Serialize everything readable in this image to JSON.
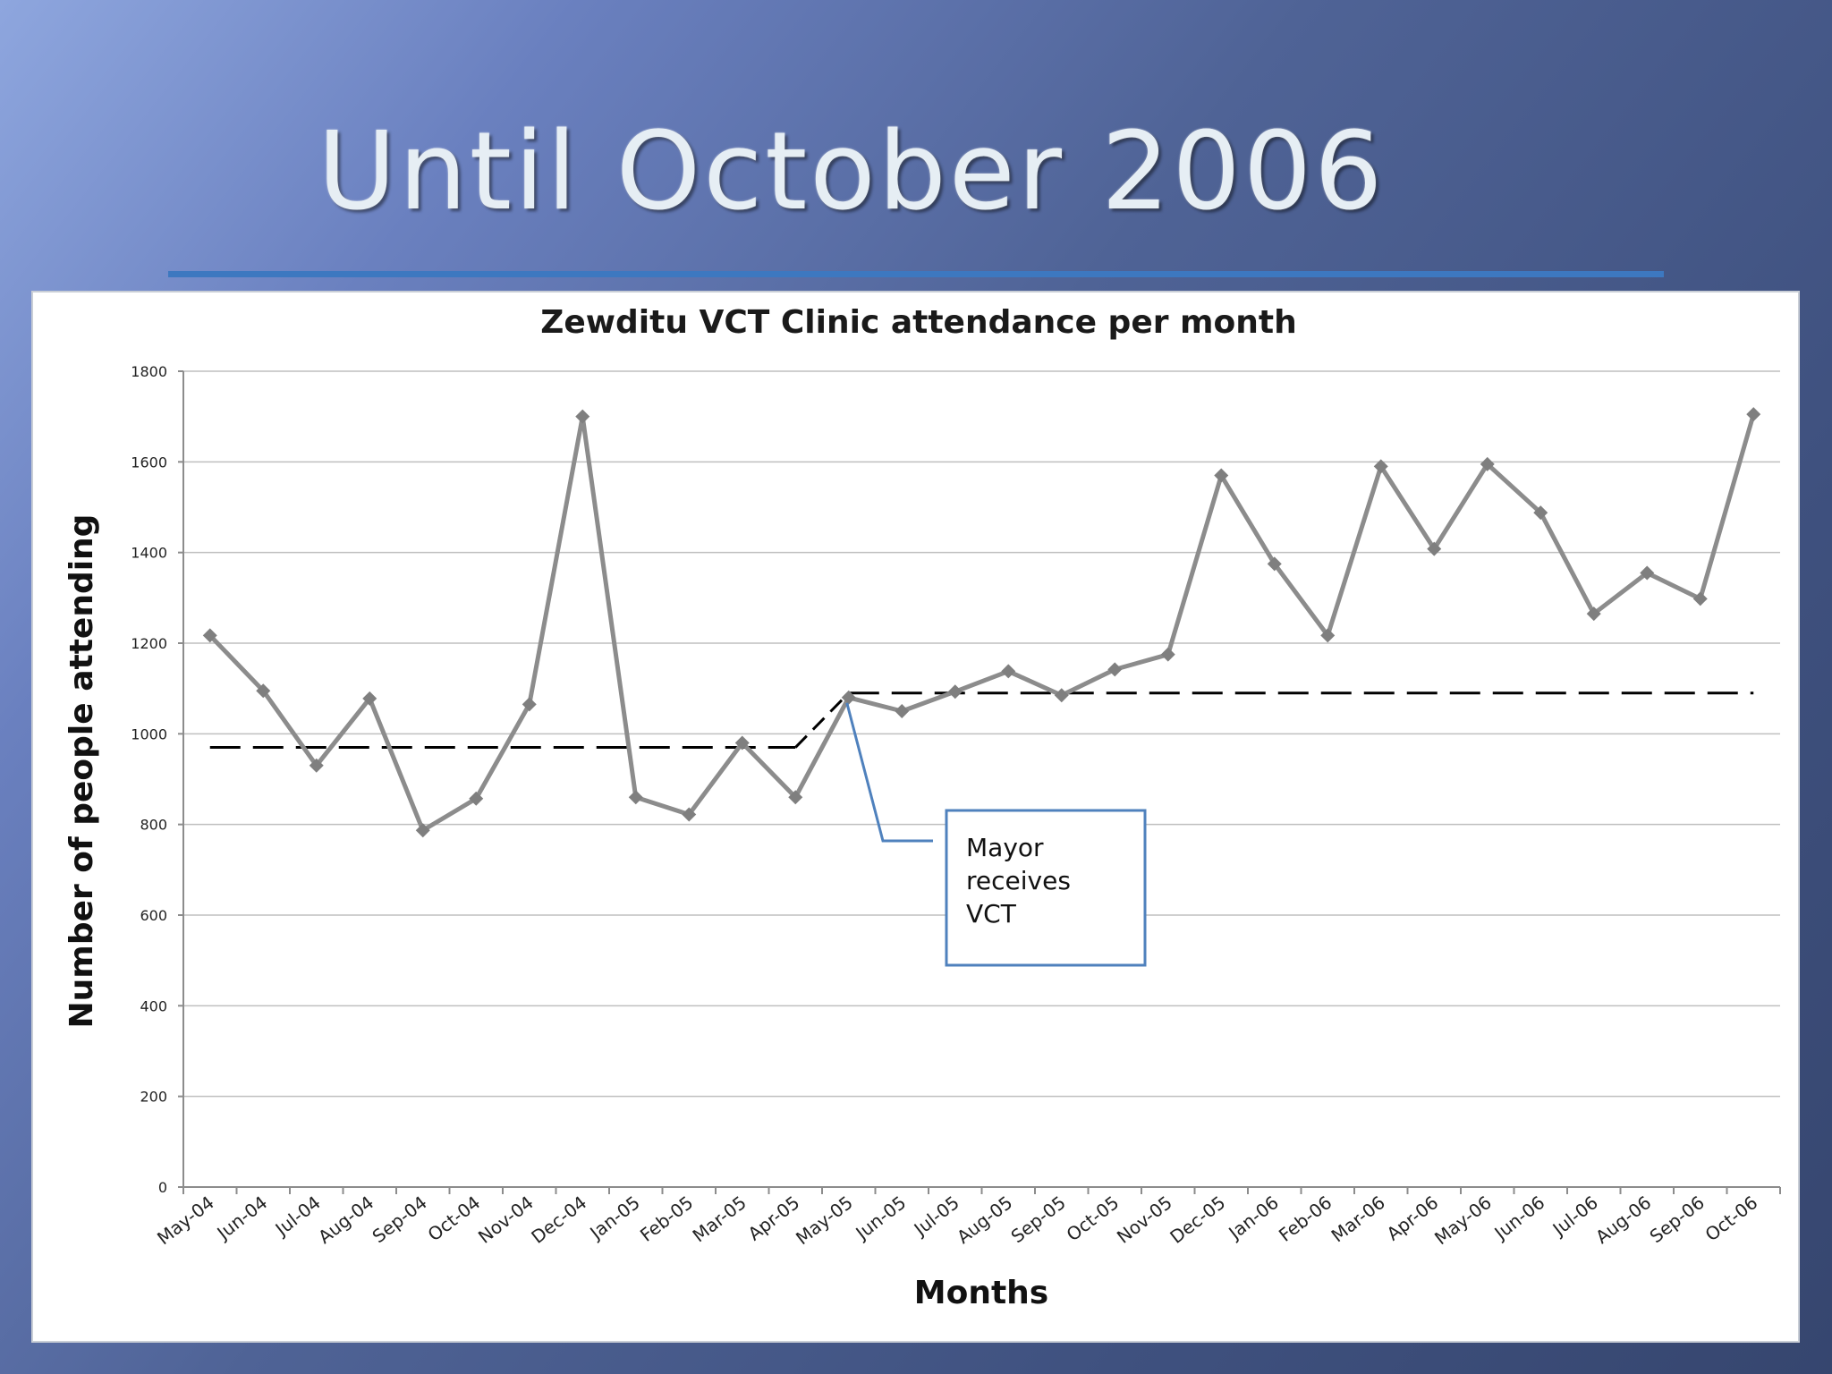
{
  "slide": {
    "title": "Until October 2006"
  },
  "colors": {
    "series": "#8c8c8c",
    "marker": "#7f7f7f",
    "baseline": "#000000",
    "grid": "#bfbfbf",
    "callout": "#4f81bd"
  },
  "chart_data": {
    "type": "line",
    "title": "Zewditu VCT Clinic attendance per month",
    "xlabel": "Months",
    "ylabel": "Number of people attending",
    "ylim": [
      0,
      1800
    ],
    "yticks": [
      0,
      200,
      400,
      600,
      800,
      1000,
      1200,
      1400,
      1600,
      1800
    ],
    "grid": true,
    "legend": "none",
    "categories": [
      "May-04",
      "Jun-04",
      "Jul-04",
      "Aug-04",
      "Sep-04",
      "Oct-04",
      "Nov-04",
      "Dec-04",
      "Jan-05",
      "Feb-05",
      "Mar-05",
      "Apr-05",
      "May-05",
      "Jun-05",
      "Jul-05",
      "Aug-05",
      "Sep-05",
      "Oct-05",
      "Nov-05",
      "Dec-05",
      "Jan-06",
      "Feb-06",
      "Mar-06",
      "Apr-06",
      "May-06",
      "Jun-06",
      "Jul-06",
      "Aug-06",
      "Sep-06",
      "Oct-06"
    ],
    "series": [
      {
        "values": [
          1217,
          1095,
          930,
          1078,
          787,
          857,
          1065,
          1700,
          860,
          822,
          980,
          860,
          1080,
          1050,
          1093,
          1138,
          1085,
          1142,
          1175,
          1570,
          1375,
          1217,
          1590,
          1408,
          1595,
          1488,
          1265,
          1355,
          1298,
          1705
        ]
      }
    ],
    "baseline_segments": [
      {
        "style": "dashed",
        "from": "May-04",
        "to": "Apr-05",
        "value": 970
      },
      {
        "style": "dashed",
        "from": "May-05",
        "to": "Oct-06",
        "value": 1090
      }
    ],
    "annotations": [
      {
        "text_lines": [
          "Mayor",
          "receives",
          "VCT"
        ],
        "points_to": "May-05"
      }
    ]
  }
}
